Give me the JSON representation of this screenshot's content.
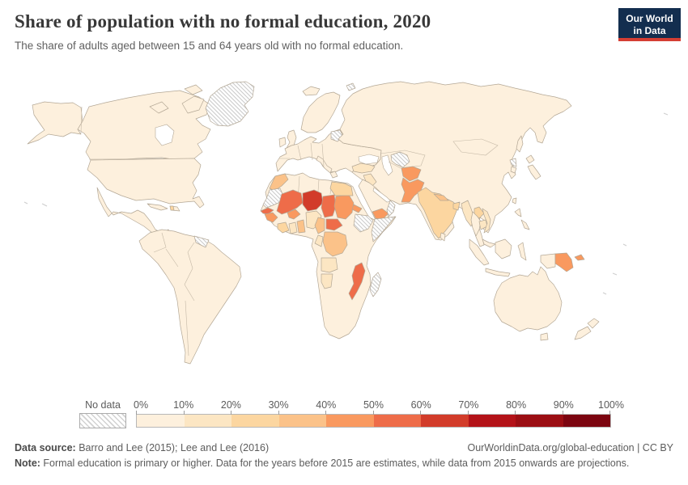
{
  "header": {
    "title": "Share of population with no formal education, 2020",
    "subtitle": "The share of adults aged between 15 and 64 years old with no formal education.",
    "logo": {
      "line1": "Our World",
      "line2": "in Data",
      "bg_color": "#132E4F",
      "accent_color": "#D53E33"
    }
  },
  "chart_data": {
    "type": "choropleth",
    "title": "Share of population with no formal education, 2020",
    "subtitle": "The share of adults aged between 15 and 64 years old with no formal education.",
    "year": "2020",
    "unit": "%",
    "projection": "World",
    "legend": {
      "no_data_label": "No data",
      "no_data_style": "diagonal-hatch",
      "ticks": [
        "0%",
        "10%",
        "20%",
        "30%",
        "40%",
        "50%",
        "60%",
        "70%",
        "80%",
        "90%",
        "100%"
      ],
      "position": "bottom"
    },
    "bins": [
      {
        "label": "0-10%",
        "color": "#fdf0dd"
      },
      {
        "label": "10-20%",
        "color": "#fce6c3"
      },
      {
        "label": "20-30%",
        "color": "#fcd6a0"
      },
      {
        "label": "30-40%",
        "color": "#fbc289"
      },
      {
        "label": "40-50%",
        "color": "#f9995f"
      },
      {
        "label": "50-60%",
        "color": "#ee6c49"
      },
      {
        "label": "60-70%",
        "color": "#d23c2a"
      },
      {
        "label": "70-80%",
        "color": "#b31218"
      },
      {
        "label": "80-90%",
        "color": "#9b0e13"
      },
      {
        "label": "90-100%",
        "color": "#7c0510"
      }
    ],
    "default_bin": "0-10%",
    "default_note": "Most of Europe, the Americas, East Asia, Central Asia and Oceania shown in the 0-10% bin",
    "entities": [
      {
        "name": "Niger",
        "bin": "60-70%"
      },
      {
        "name": "Mali",
        "bin": "50-60%"
      },
      {
        "name": "Senegal",
        "bin": "50-60%"
      },
      {
        "name": "Chad",
        "bin": "50-60%"
      },
      {
        "name": "Central African Republic",
        "bin": "50-60%"
      },
      {
        "name": "Mozambique",
        "bin": "50-60%"
      },
      {
        "name": "Sudan",
        "bin": "40-50%"
      },
      {
        "name": "Burkina Faso",
        "bin": "40-50%"
      },
      {
        "name": "Guinea",
        "bin": "40-50%"
      },
      {
        "name": "Eritrea",
        "bin": "40-50%"
      },
      {
        "name": "Yemen",
        "bin": "40-50%"
      },
      {
        "name": "Afghanistan",
        "bin": "40-50%"
      },
      {
        "name": "Pakistan",
        "bin": "40-50%"
      },
      {
        "name": "Papua New Guinea",
        "bin": "40-50%"
      },
      {
        "name": "Morocco",
        "bin": "30-40%"
      },
      {
        "name": "Democratic Republic of Congo",
        "bin": "30-40%"
      },
      {
        "name": "Nepal",
        "bin": "30-40%"
      },
      {
        "name": "Cameroon",
        "bin": "30-40%"
      },
      {
        "name": "Benin",
        "bin": "30-40%"
      },
      {
        "name": "Egypt",
        "bin": "20-30%"
      },
      {
        "name": "India",
        "bin": "20-30%"
      },
      {
        "name": "Bangladesh",
        "bin": "20-30%"
      },
      {
        "name": "Laos",
        "bin": "20-30%"
      },
      {
        "name": "Cote d'Ivoire",
        "bin": "20-30%"
      },
      {
        "name": "Haiti",
        "bin": "20-30%"
      },
      {
        "name": "Nigeria",
        "bin": "10-20%"
      },
      {
        "name": "Ghana",
        "bin": "10-20%"
      },
      {
        "name": "Angola",
        "bin": "10-20%"
      },
      {
        "name": "Namibia",
        "bin": "10-20%"
      },
      {
        "name": "Myanmar",
        "bin": "10-20%"
      },
      {
        "name": "Cambodia",
        "bin": "10-20%"
      },
      {
        "name": "Vietnam",
        "bin": "10-20%"
      },
      {
        "name": "Guatemala",
        "bin": "10-20%"
      },
      {
        "name": "Iraq",
        "bin": "10-20%"
      },
      {
        "name": "Turkey",
        "bin": "10-20%"
      },
      {
        "name": "Congo",
        "bin": "10-20%"
      },
      {
        "name": "Thailand",
        "bin": "0-10%"
      },
      {
        "name": "Greenland",
        "bin": "No data"
      },
      {
        "name": "Western Sahara & Mauritania",
        "bin": "No data"
      },
      {
        "name": "Ethiopia",
        "bin": "No data"
      },
      {
        "name": "Somalia",
        "bin": "No data"
      },
      {
        "name": "Madagascar",
        "bin": "No data"
      },
      {
        "name": "Oman",
        "bin": "No data"
      },
      {
        "name": "Turkmenistan & Uzbekistan",
        "bin": "No data"
      },
      {
        "name": "Belarus",
        "bin": "No data"
      },
      {
        "name": "North Korea",
        "bin": "No data"
      },
      {
        "name": "Guyana & Suriname",
        "bin": "No data"
      },
      {
        "name": "Svalbard",
        "bin": "No data"
      }
    ]
  },
  "footer": {
    "datasource_label": "Data source:",
    "datasource": " Barro and Lee (2015); Lee and Lee (2016)",
    "rights": "OurWorldinData.org/global-education | CC BY",
    "note_label": "Note:",
    "note": " Formal education is primary or higher. Data for the years before 2015 are estimates, while data from 2015 onwards are projections."
  }
}
